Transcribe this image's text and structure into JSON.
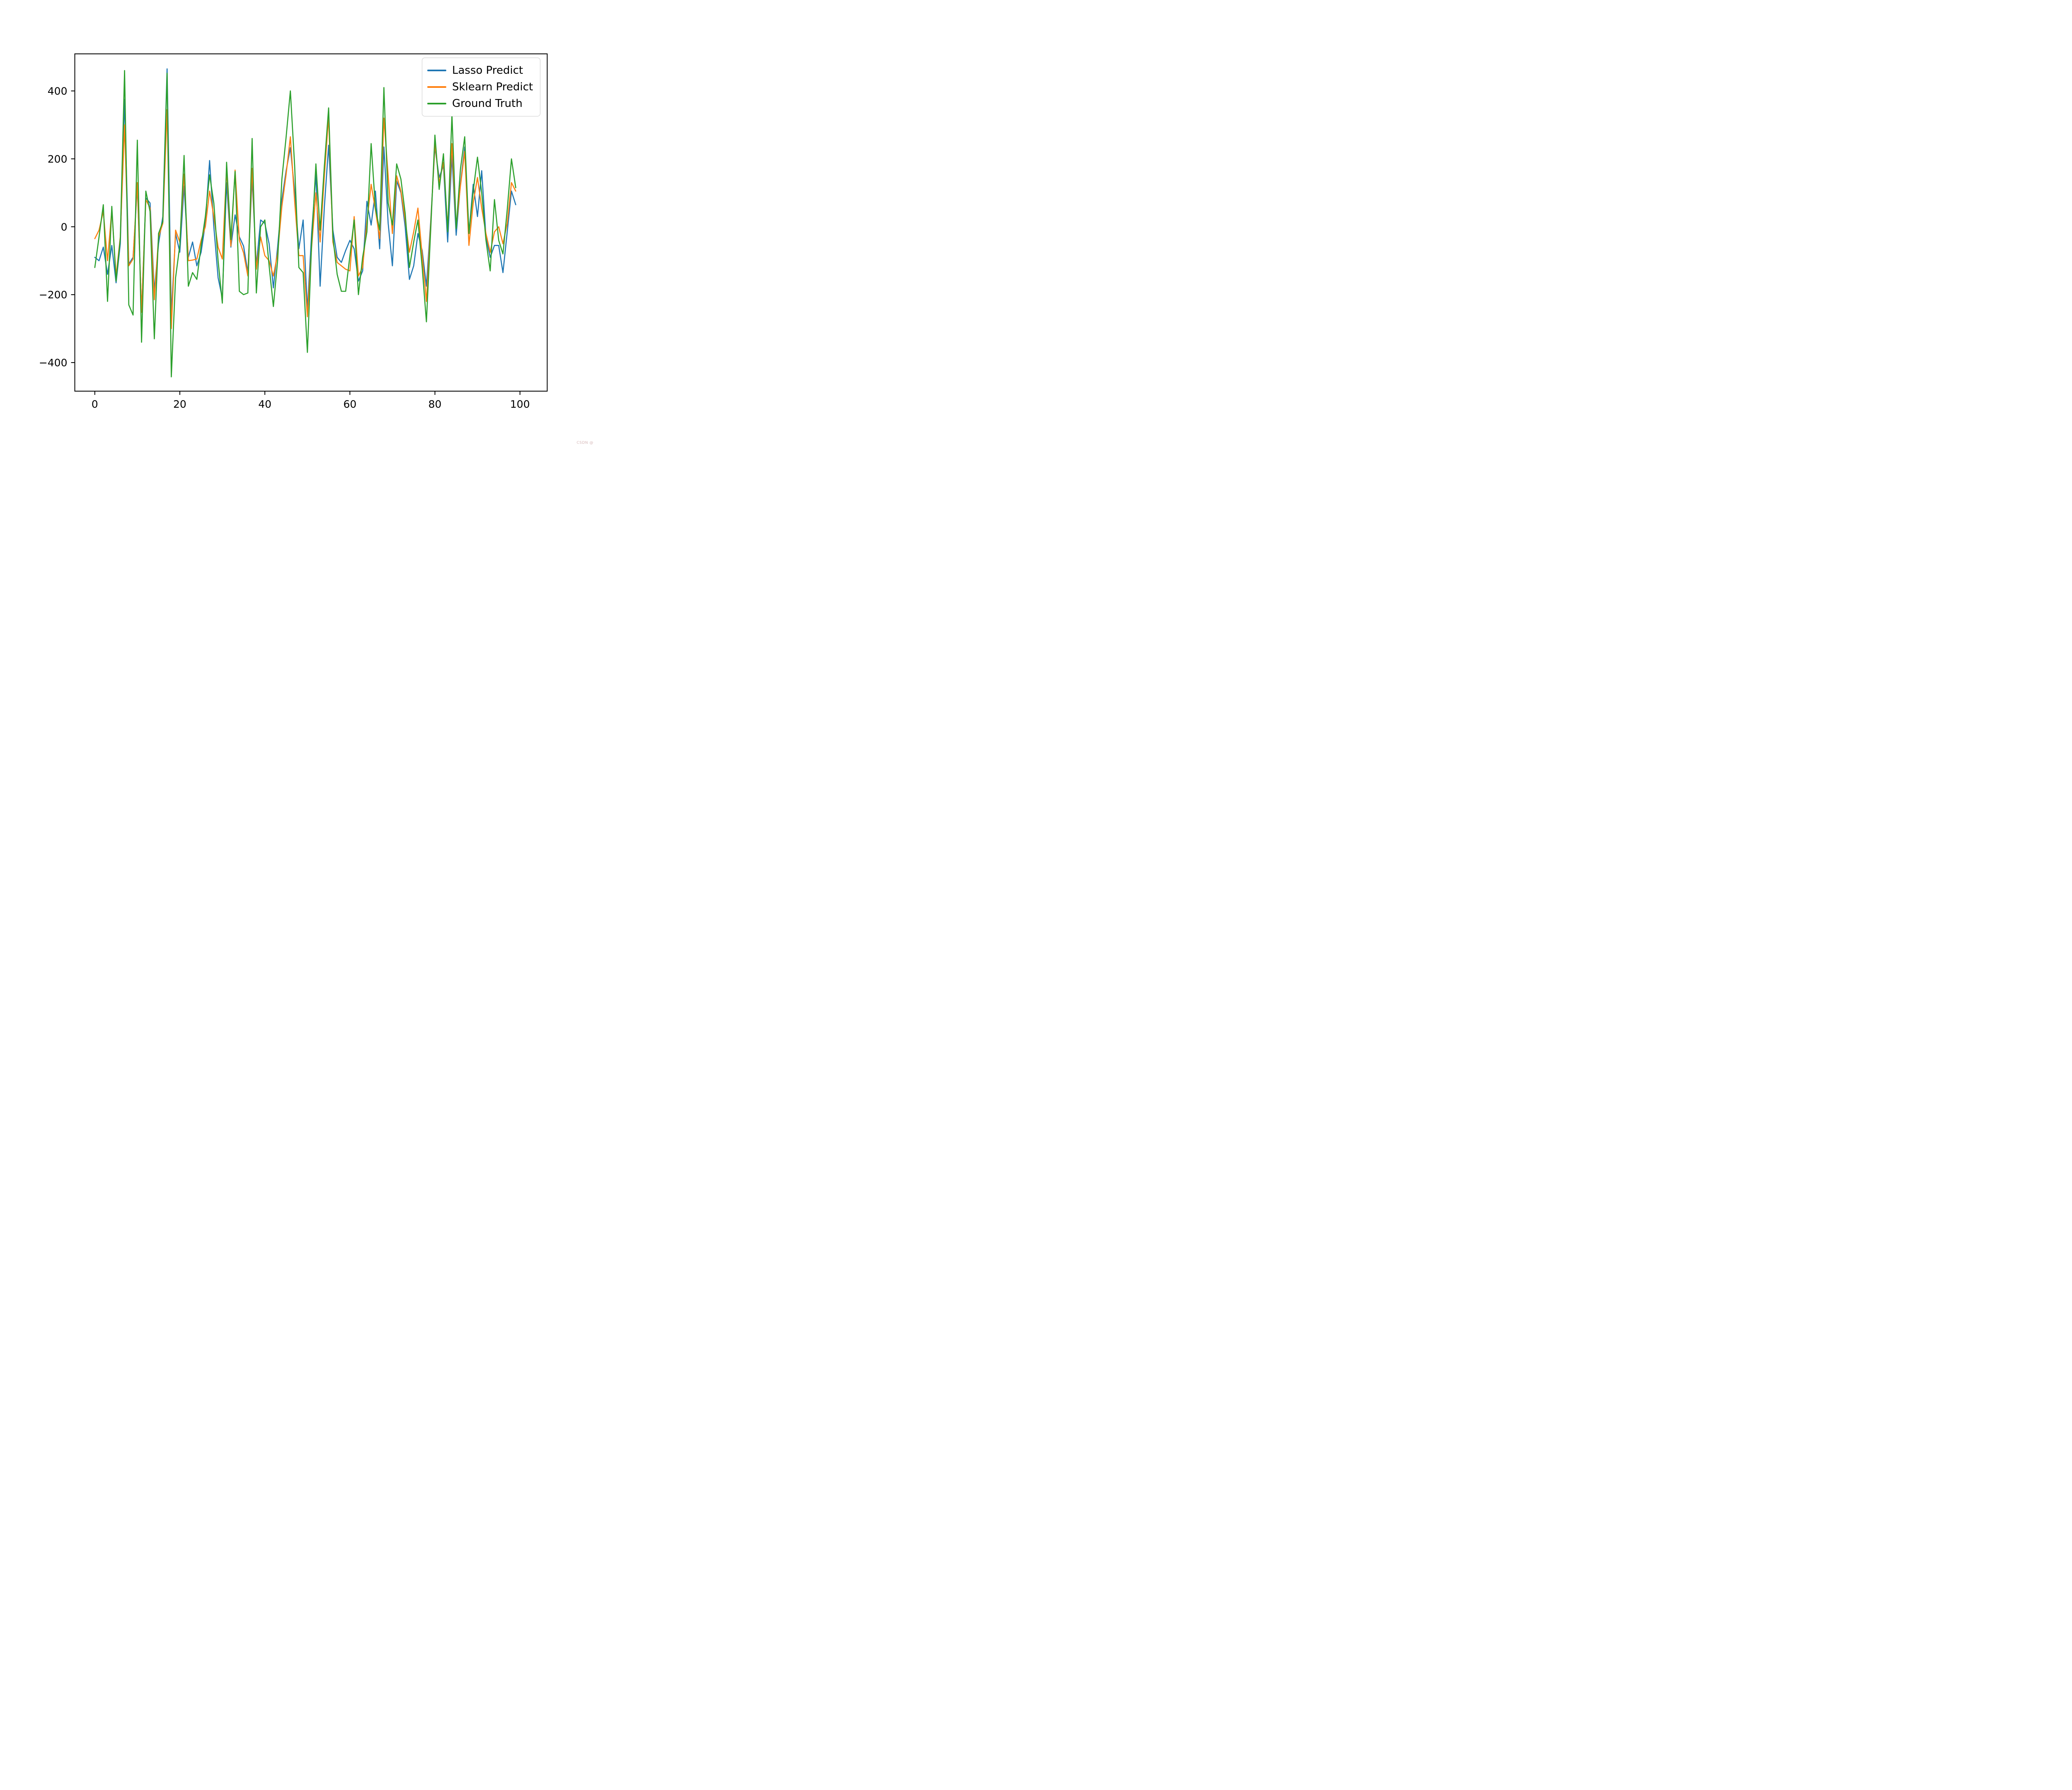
{
  "figure": {
    "background": "#ffffff"
  },
  "legend": {
    "items": [
      {
        "label": "Lasso Predict",
        "color": "#1f77b4"
      },
      {
        "label": "Sklearn Predict",
        "color": "#ff7f0e"
      },
      {
        "label": "Ground Truth",
        "color": "#2ca02c"
      }
    ]
  },
  "watermark": "CSDN @",
  "chart_data": {
    "type": "line",
    "title": "",
    "xlabel": "",
    "ylabel": "",
    "xlim": [
      -4.95,
      103.95
    ],
    "ylim": [
      -520,
      520
    ],
    "grid": false,
    "legend_position": "upper right",
    "x_ticks": [
      0,
      20,
      40,
      60,
      80,
      100
    ],
    "y_ticks": [
      -400,
      -200,
      0,
      200,
      400
    ],
    "x": "0..99 (index)",
    "series": [
      {
        "name": "Lasso Predict",
        "color": "#1f77b4",
        "values": [
          -90,
          -100,
          -60,
          -140,
          -55,
          -165,
          -50,
          375,
          -110,
          -90,
          120,
          -250,
          85,
          70,
          -190,
          -50,
          30,
          465,
          -260,
          -20,
          -75,
          120,
          -90,
          -45,
          -115,
          -75,
          10,
          195,
          0,
          -150,
          -210,
          130,
          -60,
          35,
          -30,
          -57,
          -135,
          143,
          -115,
          20,
          10,
          -50,
          -180,
          -60,
          80,
          165,
          233,
          105,
          -65,
          20,
          -245,
          -20,
          155,
          -175,
          60,
          240,
          -10,
          -90,
          -105,
          -70,
          -40,
          -65,
          -160,
          -130,
          75,
          5,
          105,
          -65,
          235,
          10,
          -115,
          135,
          100,
          0,
          -155,
          -115,
          -20,
          -70,
          -175,
          15,
          235,
          145,
          180,
          -45,
          210,
          -25,
          125,
          235,
          -20,
          125,
          30,
          165,
          -30,
          -90,
          -55,
          -55,
          -135,
          -15,
          105,
          65
        ]
      },
      {
        "name": "Sklearn Predict",
        "color": "#ff7f0e",
        "values": [
          -35,
          -10,
          45,
          -100,
          50,
          -145,
          -30,
          300,
          -115,
          -95,
          130,
          -252,
          80,
          55,
          -215,
          -30,
          10,
          345,
          -300,
          -10,
          -45,
          155,
          -100,
          -98,
          -95,
          -40,
          0,
          105,
          30,
          -60,
          -95,
          170,
          -57,
          167,
          -40,
          -77,
          -145,
          172,
          -125,
          -30,
          -85,
          -100,
          -145,
          -80,
          60,
          155,
          265,
          75,
          -85,
          -85,
          -265,
          -60,
          100,
          -45,
          150,
          325,
          -45,
          -105,
          -115,
          -125,
          -130,
          30,
          -145,
          -120,
          15,
          125,
          50,
          -35,
          320,
          150,
          -20,
          150,
          105,
          20,
          -75,
          -15,
          55,
          -85,
          -220,
          5,
          245,
          130,
          190,
          0,
          245,
          0,
          120,
          222,
          -55,
          70,
          145,
          55,
          -20,
          -75,
          -15,
          0,
          -50,
          10,
          130,
          105
        ]
      },
      {
        "name": "Ground Truth",
        "color": "#2ca02c",
        "values": [
          -120,
          -30,
          65,
          -220,
          60,
          -160,
          -35,
          460,
          -230,
          -260,
          255,
          -340,
          105,
          45,
          -330,
          -20,
          15,
          452,
          -442,
          -150,
          -55,
          210,
          -175,
          -135,
          -155,
          -55,
          30,
          153,
          70,
          -100,
          -225,
          190,
          -38,
          163,
          -190,
          -200,
          -195,
          260,
          -195,
          0,
          20,
          -115,
          -235,
          -100,
          140,
          265,
          400,
          180,
          -120,
          -135,
          -370,
          -50,
          185,
          -10,
          180,
          350,
          -30,
          -140,
          -190,
          -190,
          -85,
          20,
          -200,
          -90,
          -15,
          245,
          55,
          -10,
          410,
          70,
          5,
          185,
          140,
          40,
          -120,
          -45,
          20,
          -120,
          -280,
          -10,
          270,
          110,
          215,
          -15,
          330,
          -5,
          170,
          265,
          -20,
          105,
          205,
          100,
          -40,
          -130,
          80,
          -40,
          -80,
          50,
          200,
          115
        ]
      }
    ]
  }
}
